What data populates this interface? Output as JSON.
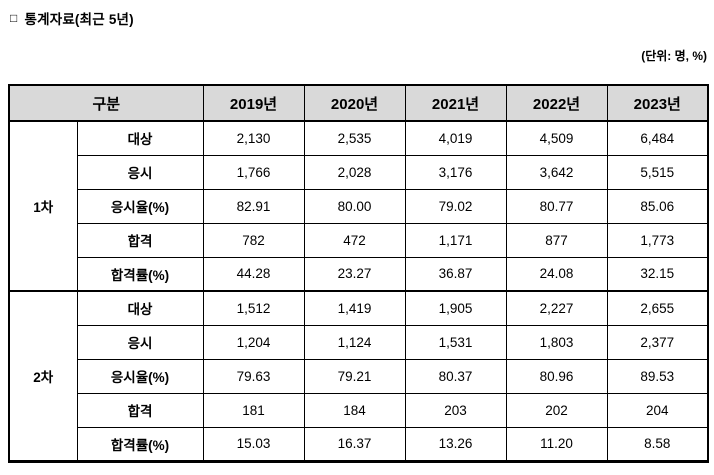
{
  "title": {
    "bullet": "□",
    "text": "통계자료(최근 5년)"
  },
  "unit_note": "(단위: 명, %)",
  "colors": {
    "header_bg": "#d9d9d9",
    "border": "#000000",
    "text": "#000000"
  },
  "table": {
    "header": {
      "category": "구분",
      "years": [
        "2019년",
        "2020년",
        "2021년",
        "2022년",
        "2023년"
      ]
    },
    "sections": [
      {
        "group": "1차",
        "rows": [
          {
            "label": "대상",
            "values": [
              "2,130",
              "2,535",
              "4,019",
              "4,509",
              "6,484"
            ]
          },
          {
            "label": "응시",
            "values": [
              "1,766",
              "2,028",
              "3,176",
              "3,642",
              "5,515"
            ]
          },
          {
            "label": "응시율(%)",
            "values": [
              "82.91",
              "80.00",
              "79.02",
              "80.77",
              "85.06"
            ]
          },
          {
            "label": "합격",
            "values": [
              "782",
              "472",
              "1,171",
              "877",
              "1,773"
            ]
          },
          {
            "label": "합격률(%)",
            "values": [
              "44.28",
              "23.27",
              "36.87",
              "24.08",
              "32.15"
            ]
          }
        ]
      },
      {
        "group": "2차",
        "rows": [
          {
            "label": "대상",
            "values": [
              "1,512",
              "1,419",
              "1,905",
              "2,227",
              "2,655"
            ]
          },
          {
            "label": "응시",
            "values": [
              "1,204",
              "1,124",
              "1,531",
              "1,803",
              "2,377"
            ]
          },
          {
            "label": "응시율(%)",
            "values": [
              "79.63",
              "79.21",
              "80.37",
              "80.96",
              "89.53"
            ]
          },
          {
            "label": "합격",
            "values": [
              "181",
              "184",
              "203",
              "202",
              "204"
            ]
          },
          {
            "label": "합격률(%)",
            "values": [
              "15.03",
              "16.37",
              "13.26",
              "11.20",
              "8.58"
            ]
          }
        ]
      }
    ]
  }
}
